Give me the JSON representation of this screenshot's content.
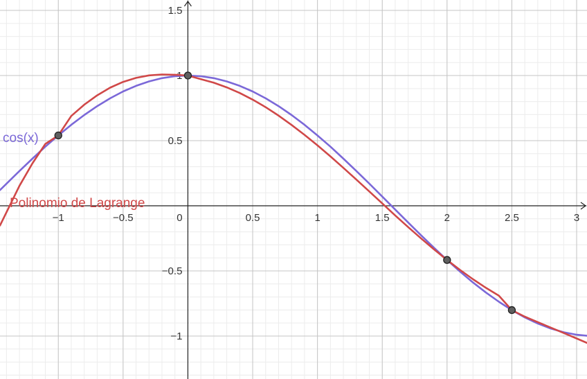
{
  "chart_data": {
    "type": "line",
    "title": "",
    "xlabel": "",
    "ylabel": "",
    "xlim": [
      -1.45,
      3.08
    ],
    "ylim": [
      -1.33,
      1.58
    ],
    "grid": true,
    "minor_grid": true,
    "x_ticks": [
      {
        "value": -1,
        "label": "−1"
      },
      {
        "value": -0.5,
        "label": "−0.5"
      },
      {
        "value": 0,
        "label": "0"
      },
      {
        "value": 0.5,
        "label": "0.5"
      },
      {
        "value": 1,
        "label": "1"
      },
      {
        "value": 1.5,
        "label": "1.5"
      },
      {
        "value": 2,
        "label": "2"
      },
      {
        "value": 2.5,
        "label": "2.5"
      },
      {
        "value": 3,
        "label": "3"
      }
    ],
    "y_ticks": [
      {
        "value": 1.5,
        "label": "1.5"
      },
      {
        "value": 1,
        "label": "1"
      },
      {
        "value": 0.5,
        "label": "0.5"
      },
      {
        "value": -0.5,
        "label": "−0.5"
      },
      {
        "value": -1,
        "label": "−1"
      }
    ],
    "series": [
      {
        "name": "cos(x)",
        "color": "#7b68d8",
        "x": [
          -1.45,
          -1.3,
          -1.2,
          -1.1,
          -1.0,
          -0.9,
          -0.8,
          -0.7,
          -0.6,
          -0.5,
          -0.4,
          -0.3,
          -0.2,
          -0.1,
          0.0,
          0.1,
          0.2,
          0.3,
          0.4,
          0.5,
          0.6,
          0.7,
          0.8,
          0.9,
          1.0,
          1.1,
          1.2,
          1.3,
          1.4,
          1.5,
          1.6,
          1.7,
          1.8,
          1.9,
          2.0,
          2.1,
          2.2,
          2.3,
          2.4,
          2.5,
          2.6,
          2.7,
          2.8,
          2.9,
          3.0,
          3.08
        ],
        "values": [
          0.121,
          0.267,
          0.362,
          0.454,
          0.54,
          0.622,
          0.697,
          0.765,
          0.825,
          0.878,
          0.921,
          0.955,
          0.98,
          0.995,
          1.0,
          0.995,
          0.98,
          0.955,
          0.921,
          0.878,
          0.825,
          0.765,
          0.697,
          0.622,
          0.54,
          0.454,
          0.362,
          0.267,
          0.17,
          0.071,
          -0.029,
          -0.129,
          -0.227,
          -0.323,
          -0.416,
          -0.505,
          -0.589,
          -0.666,
          -0.737,
          -0.801,
          -0.857,
          -0.904,
          -0.942,
          -0.971,
          -0.99,
          -0.998
        ]
      },
      {
        "name": "Polinomio de Lagrange",
        "color": "#d04848",
        "x": [
          -1.45,
          -1.3,
          -1.2,
          -1.1,
          -1.0,
          -0.9,
          -0.8,
          -0.7,
          -0.6,
          -0.5,
          -0.4,
          -0.3,
          -0.2,
          -0.1,
          0.0,
          0.1,
          0.2,
          0.3,
          0.4,
          0.5,
          0.6,
          0.7,
          0.8,
          0.9,
          1.0,
          1.1,
          1.2,
          1.3,
          1.4,
          1.5,
          1.6,
          1.7,
          1.8,
          1.9,
          2.0,
          2.1,
          2.2,
          2.3,
          2.4,
          2.5,
          2.6,
          2.7,
          2.8,
          2.9,
          3.0,
          3.08
        ],
        "values": [
          -0.151,
          0.153,
          0.325,
          0.475,
          0.54,
          0.69,
          0.776,
          0.848,
          0.907,
          0.951,
          0.982,
          1.001,
          1.008,
          1.006,
          1.0,
          0.972,
          0.945,
          0.909,
          0.866,
          0.815,
          0.757,
          0.692,
          0.621,
          0.545,
          0.464,
          0.379,
          0.291,
          0.201,
          0.11,
          0.018,
          -0.074,
          -0.164,
          -0.251,
          -0.335,
          -0.416,
          -0.492,
          -0.564,
          -0.63,
          -0.69,
          -0.801,
          -0.851,
          -0.893,
          -0.935,
          -0.977,
          -1.019,
          -1.053
        ]
      }
    ],
    "points": [
      {
        "x": -1.0,
        "y": 0.54
      },
      {
        "x": 0.0,
        "y": 1.0
      },
      {
        "x": 2.0,
        "y": -0.416
      },
      {
        "x": 2.5,
        "y": -0.801
      }
    ]
  }
}
